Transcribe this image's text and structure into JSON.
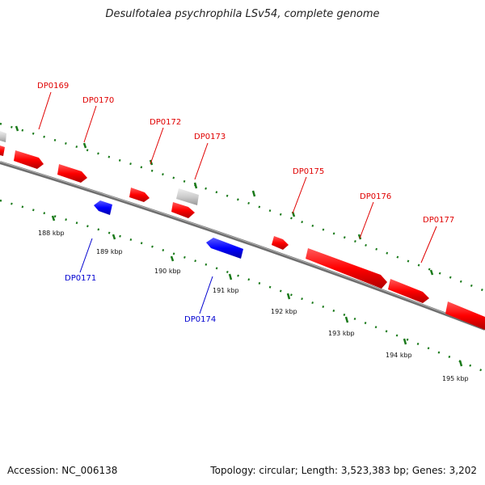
{
  "title": "Desulfotalea psychrophila LSv54, complete genome",
  "accession": "Accession: NC_006138",
  "summary": "Topology: circular; Length: 3,523,383 bp; Genes: 3,202",
  "colors": {
    "forward_gene": "#ff0000",
    "reverse_gene": "#0000ff",
    "other_feature": "#c8c8c8",
    "backbone": "#777777",
    "ticks": "#1a7a1a"
  },
  "forward_genes": [
    "DP0169",
    "DP0170",
    "DP0172",
    "DP0173",
    "DP0175",
    "DP0176",
    "DP0177"
  ],
  "reverse_genes": [
    "DP0171",
    "DP0174"
  ],
  "scale_labels": [
    "188 kbp",
    "189 kbp",
    "190 kbp",
    "191 kbp",
    "192 kbp",
    "193 kbp",
    "194 kbp",
    "195 kbp"
  ]
}
